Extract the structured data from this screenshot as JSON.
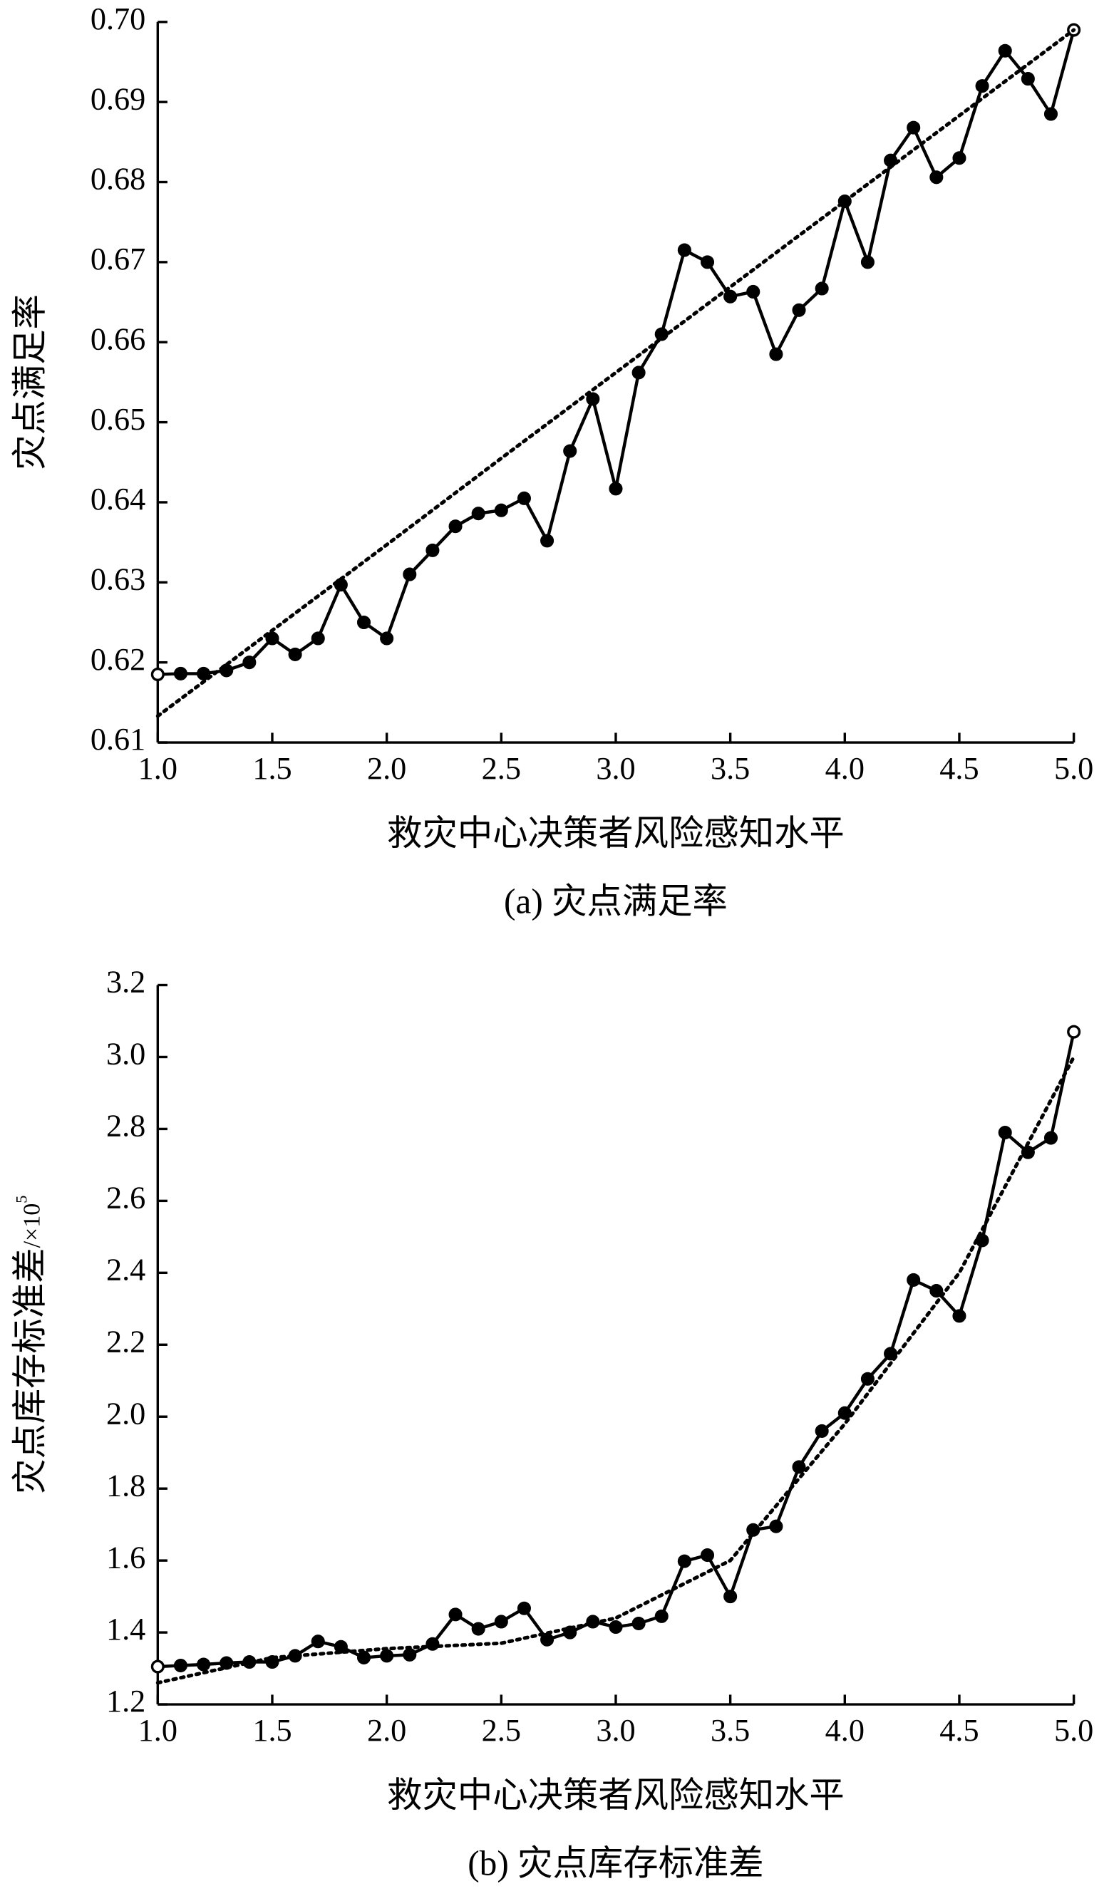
{
  "chart_data": [
    {
      "type": "line",
      "y_label": "灾点满足率",
      "x_label": "救灾中心决策者风险感知水平",
      "caption": "(a) 灾点满足率",
      "x": [
        1.0,
        1.1,
        1.2,
        1.3,
        1.4,
        1.5,
        1.6,
        1.7,
        1.8,
        1.9,
        2.0,
        2.1,
        2.2,
        2.3,
        2.4,
        2.5,
        2.6,
        2.7,
        2.8,
        2.9,
        3.0,
        3.1,
        3.2,
        3.3,
        3.4,
        3.5,
        3.6,
        3.7,
        3.8,
        3.9,
        4.0,
        4.1,
        4.2,
        4.3,
        4.4,
        4.5,
        4.6,
        4.7,
        4.8,
        4.9,
        5.0
      ],
      "series": [
        {
          "color": "#000000",
          "style": "solid",
          "values": [
            0.6185,
            0.6186,
            0.6186,
            0.619,
            0.62,
            0.623,
            0.621,
            0.623,
            0.6297,
            0.625,
            0.623,
            0.631,
            0.634,
            0.637,
            0.6386,
            0.639,
            0.6405,
            0.6352,
            0.6464,
            0.6529,
            0.6417,
            0.6562,
            0.661,
            0.6715,
            0.67,
            0.6657,
            0.6663,
            0.6585,
            0.664,
            0.6667,
            0.6776,
            0.67,
            0.6827,
            0.6868,
            0.6806,
            0.683,
            0.692,
            0.6964,
            0.6929,
            0.6885,
            0.699
          ]
        },
        {
          "color": "#000000",
          "style": "dotted",
          "x": [
            1.0,
            1.5,
            2.0,
            2.5,
            3.0,
            3.5,
            4.0,
            4.5,
            5.0
          ],
          "values": [
            0.6133,
            0.624,
            0.6347,
            0.6455,
            0.6562,
            0.6669,
            0.6776,
            0.6883,
            0.699
          ]
        }
      ],
      "xlim": [
        1.0,
        5.0
      ],
      "xticks": [
        {
          "value": 1,
          "label": "1.0"
        },
        1.5,
        {
          "value": 2,
          "label": "2.0"
        },
        2.5,
        {
          "value": 3,
          "label": "3.0"
        },
        3.5,
        {
          "value": 4,
          "label": "4.0"
        },
        4.5,
        {
          "value": 5,
          "label": "5.0"
        }
      ],
      "ylim": [
        0.61,
        0.7
      ],
      "yticks": [
        0.61,
        0.62,
        0.63,
        0.64,
        0.65,
        0.66,
        0.67,
        0.68,
        0.69,
        {
          "value": 0.7,
          "label": "0.70"
        }
      ]
    },
    {
      "type": "line",
      "y_label": "灾点库存标准差",
      "y_label_unit": "/×10",
      "y_label_exp": "5",
      "x_label": "救灾中心决策者风险感知水平",
      "caption": "(b) 灾点库存标准差",
      "x": [
        1.0,
        1.1,
        1.2,
        1.3,
        1.4,
        1.5,
        1.6,
        1.7,
        1.8,
        1.9,
        2.0,
        2.1,
        2.2,
        2.3,
        2.4,
        2.5,
        2.6,
        2.7,
        2.8,
        2.9,
        3.0,
        3.1,
        3.2,
        3.3,
        3.4,
        3.5,
        3.6,
        3.7,
        3.8,
        3.9,
        4.0,
        4.1,
        4.2,
        4.3,
        4.4,
        4.5,
        4.6,
        4.7,
        4.8,
        4.9,
        5.0
      ],
      "series": [
        {
          "color": "#000000",
          "style": "solid",
          "values": [
            1.305,
            1.308,
            1.311,
            1.315,
            1.318,
            1.318,
            1.335,
            1.375,
            1.36,
            1.33,
            1.335,
            1.338,
            1.368,
            1.45,
            1.41,
            1.43,
            1.467,
            1.38,
            1.4,
            1.43,
            1.415,
            1.425,
            1.445,
            1.598,
            1.615,
            1.5,
            1.685,
            1.695,
            1.86,
            1.96,
            2.01,
            2.105,
            2.175,
            2.38,
            2.35,
            2.28,
            2.49,
            2.79,
            2.735,
            2.775,
            3.07
          ]
        },
        {
          "color": "#000000",
          "style": "dotted",
          "x": [
            1.0,
            1.5,
            2.0,
            2.5,
            3.0,
            3.5,
            4.0,
            4.5,
            5.0
          ],
          "values": [
            1.26,
            1.33,
            1.355,
            1.37,
            1.44,
            1.6,
            1.98,
            2.4,
            3.0
          ]
        }
      ],
      "xlim": [
        1.0,
        5.0
      ],
      "xticks": [
        {
          "value": 1,
          "label": "1.0"
        },
        1.5,
        {
          "value": 2,
          "label": "2.0"
        },
        2.5,
        {
          "value": 3,
          "label": "3.0"
        },
        3.5,
        {
          "value": 4,
          "label": "4.0"
        },
        4.5,
        {
          "value": 5,
          "label": "5.0"
        }
      ],
      "ylim": [
        1.2,
        3.2
      ],
      "yticks": [
        1.2,
        1.4,
        1.6,
        1.8,
        {
          "value": 2,
          "label": "2.0"
        },
        2.2,
        2.4,
        2.6,
        2.8,
        {
          "value": 3,
          "label": "3.0"
        },
        3.2
      ]
    }
  ]
}
